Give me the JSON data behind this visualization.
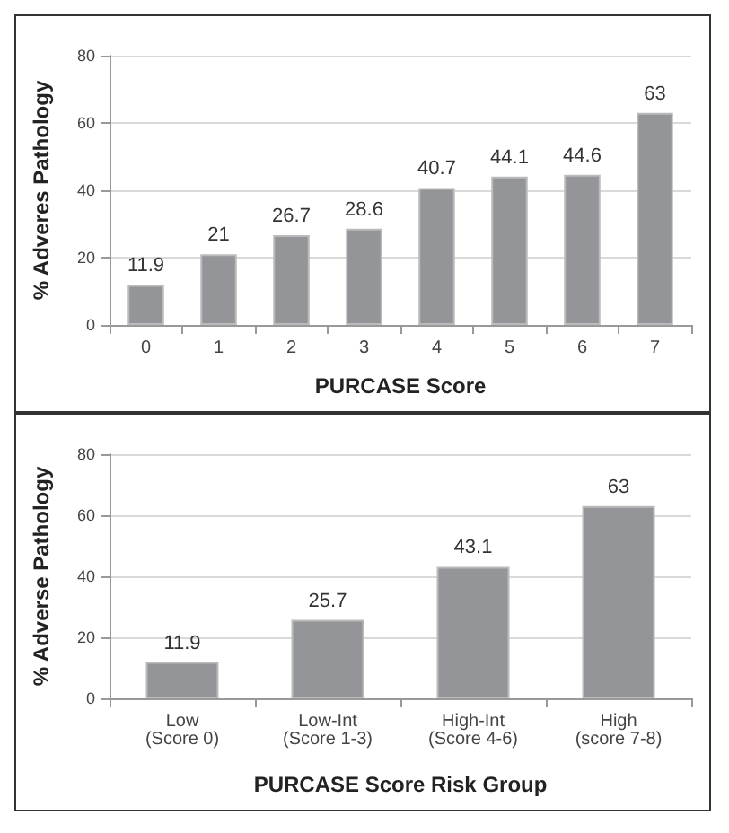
{
  "chart_data": [
    {
      "type": "bar",
      "xlabel": "PURCASE Score",
      "ylabel": "% Adveres Pathology",
      "categories": [
        "0",
        "1",
        "2",
        "3",
        "4",
        "5",
        "6",
        "7"
      ],
      "values": [
        11.9,
        21,
        26.7,
        28.6,
        40.7,
        44.1,
        44.6,
        63
      ],
      "color": "#939598",
      "ylim": [
        0,
        80
      ],
      "yticks": [
        0,
        20,
        40,
        60,
        80
      ],
      "grid": "y",
      "data_labels": true
    },
    {
      "type": "bar",
      "xlabel": "PURCASE Score Risk Group",
      "ylabel": "% Adverse Pathology",
      "categories": [
        "Low\n(Score 0)",
        "Low-Int\n(Score 1-3)",
        "High-Int\n(Score 4-6)",
        "High\n(score 7-8)"
      ],
      "values": [
        11.9,
        25.7,
        43.1,
        63
      ],
      "color": "#939598",
      "ylim": [
        0,
        80
      ],
      "yticks": [
        0,
        20,
        40,
        60,
        80
      ],
      "grid": "y",
      "data_labels": true
    }
  ]
}
